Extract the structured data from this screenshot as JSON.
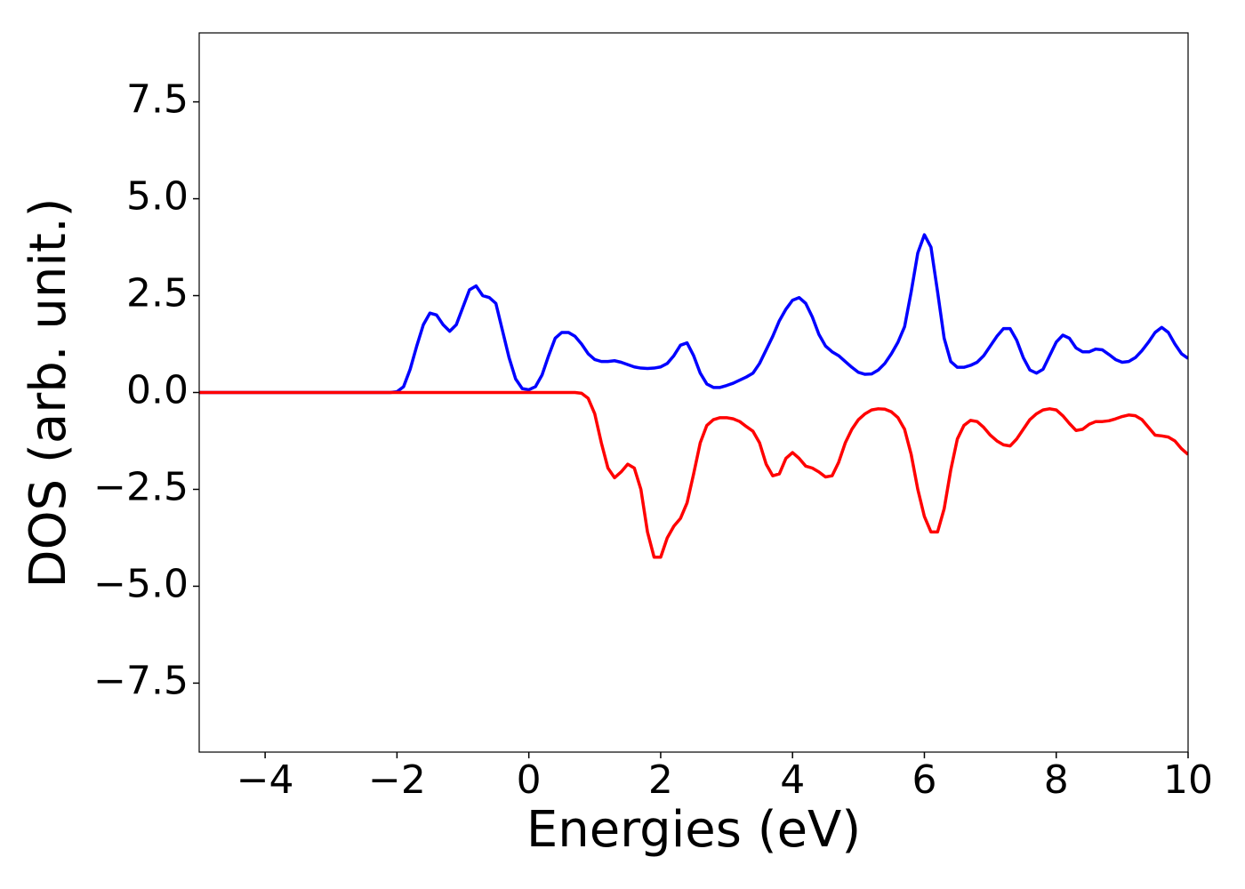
{
  "chart_data": {
    "type": "line",
    "x_label": "Energies (eV)",
    "y_label": "DOS (arb. unit.)",
    "x": [
      -5,
      -4,
      -3,
      -2.2,
      -2.1,
      -2.0,
      -1.9,
      -1.8,
      -1.7,
      -1.6,
      -1.5,
      -1.4,
      -1.3,
      -1.2,
      -1.1,
      -1.0,
      -0.9,
      -0.8,
      -0.7,
      -0.6,
      -0.5,
      -0.4,
      -0.3,
      -0.2,
      -0.1,
      0.0,
      0.1,
      0.2,
      0.3,
      0.4,
      0.5,
      0.6,
      0.7,
      0.8,
      0.9,
      1.0,
      1.1,
      1.2,
      1.3,
      1.4,
      1.5,
      1.6,
      1.7,
      1.8,
      1.9,
      2.0,
      2.1,
      2.2,
      2.3,
      2.4,
      2.5,
      2.6,
      2.7,
      2.8,
      2.9,
      3.0,
      3.1,
      3.2,
      3.3,
      3.4,
      3.5,
      3.6,
      3.7,
      3.8,
      3.9,
      4.0,
      4.1,
      4.2,
      4.3,
      4.4,
      4.5,
      4.6,
      4.7,
      4.8,
      4.9,
      5.0,
      5.1,
      5.2,
      5.3,
      5.4,
      5.5,
      5.6,
      5.7,
      5.8,
      5.9,
      6.0,
      6.1,
      6.2,
      6.3,
      6.4,
      6.5,
      6.6,
      6.7,
      6.8,
      6.9,
      7.0,
      7.1,
      7.2,
      7.3,
      7.4,
      7.5,
      7.6,
      7.7,
      7.8,
      7.9,
      8.0,
      8.1,
      8.2,
      8.3,
      8.4,
      8.5,
      8.6,
      8.7,
      8.8,
      8.9,
      9.0,
      9.1,
      9.2,
      9.3,
      9.4,
      9.5,
      9.6,
      9.7,
      9.8,
      9.9,
      10.0
    ],
    "series": [
      {
        "color": "#0000ff",
        "values": [
          0,
          0,
          0,
          0,
          0,
          0.02,
          0.15,
          0.6,
          1.2,
          1.75,
          2.05,
          2.0,
          1.75,
          1.58,
          1.75,
          2.2,
          2.65,
          2.75,
          2.5,
          2.45,
          2.3,
          1.6,
          0.9,
          0.35,
          0.1,
          0.07,
          0.15,
          0.45,
          0.95,
          1.4,
          1.55,
          1.55,
          1.45,
          1.25,
          1.0,
          0.85,
          0.8,
          0.8,
          0.82,
          0.78,
          0.72,
          0.66,
          0.63,
          0.62,
          0.63,
          0.66,
          0.75,
          0.95,
          1.22,
          1.28,
          0.95,
          0.5,
          0.22,
          0.13,
          0.13,
          0.18,
          0.24,
          0.32,
          0.4,
          0.5,
          0.75,
          1.1,
          1.45,
          1.85,
          2.15,
          2.38,
          2.45,
          2.3,
          1.95,
          1.5,
          1.2,
          1.05,
          0.95,
          0.8,
          0.65,
          0.52,
          0.47,
          0.48,
          0.58,
          0.75,
          1.0,
          1.3,
          1.7,
          2.6,
          3.6,
          4.07,
          3.75,
          2.6,
          1.4,
          0.8,
          0.65,
          0.65,
          0.7,
          0.78,
          0.95,
          1.2,
          1.45,
          1.65,
          1.65,
          1.35,
          0.9,
          0.58,
          0.5,
          0.6,
          0.95,
          1.3,
          1.48,
          1.4,
          1.15,
          1.05,
          1.05,
          1.12,
          1.1,
          0.98,
          0.85,
          0.78,
          0.8,
          0.9,
          1.08,
          1.3,
          1.55,
          1.68,
          1.55,
          1.25,
          1.0,
          0.88
        ]
      },
      {
        "color": "#ff0000",
        "values": [
          0,
          0,
          0,
          0,
          0,
          0,
          0,
          0,
          0,
          0,
          0,
          0,
          0,
          0,
          0,
          0,
          0,
          0,
          0,
          0,
          0,
          0,
          0,
          0,
          0,
          0,
          0,
          0,
          0,
          0,
          0,
          0,
          0,
          -0.02,
          -0.15,
          -0.55,
          -1.3,
          -1.95,
          -2.2,
          -2.05,
          -1.85,
          -1.95,
          -2.5,
          -3.6,
          -4.25,
          -4.25,
          -3.75,
          -3.45,
          -3.25,
          -2.85,
          -2.1,
          -1.3,
          -0.85,
          -0.7,
          -0.65,
          -0.65,
          -0.68,
          -0.75,
          -0.88,
          -1.0,
          -1.3,
          -1.85,
          -2.15,
          -2.1,
          -1.7,
          -1.55,
          -1.7,
          -1.9,
          -1.95,
          -2.05,
          -2.18,
          -2.15,
          -1.8,
          -1.3,
          -0.95,
          -0.7,
          -0.55,
          -0.45,
          -0.42,
          -0.43,
          -0.5,
          -0.65,
          -0.95,
          -1.6,
          -2.5,
          -3.2,
          -3.6,
          -3.6,
          -3.0,
          -2.0,
          -1.2,
          -0.85,
          -0.72,
          -0.75,
          -0.9,
          -1.1,
          -1.25,
          -1.35,
          -1.38,
          -1.2,
          -0.95,
          -0.7,
          -0.55,
          -0.45,
          -0.42,
          -0.45,
          -0.6,
          -0.8,
          -0.98,
          -0.95,
          -0.82,
          -0.75,
          -0.75,
          -0.73,
          -0.68,
          -0.62,
          -0.58,
          -0.6,
          -0.7,
          -0.9,
          -1.1,
          -1.12,
          -1.15,
          -1.25,
          -1.45,
          -1.6
        ]
      }
    ],
    "xlim": [
      -5,
      10
    ],
    "ylim": [
      -9.28,
      9.28
    ],
    "xticks": [
      {
        "value": -4,
        "label": "−4"
      },
      {
        "value": -2,
        "label": "−2"
      },
      0,
      2,
      4,
      6,
      8,
      10
    ],
    "yticks": [
      {
        "value": -7.5,
        "label": "−7.5"
      },
      {
        "value": -5,
        "label": "−5.0"
      },
      {
        "value": -2.5,
        "label": "−2.5"
      },
      {
        "value": 0,
        "label": "0.0"
      },
      {
        "value": 2.5,
        "label": "2.5"
      },
      {
        "value": 5,
        "label": "5.0"
      },
      {
        "value": 7.5,
        "label": "7.5"
      }
    ],
    "grid": false
  }
}
